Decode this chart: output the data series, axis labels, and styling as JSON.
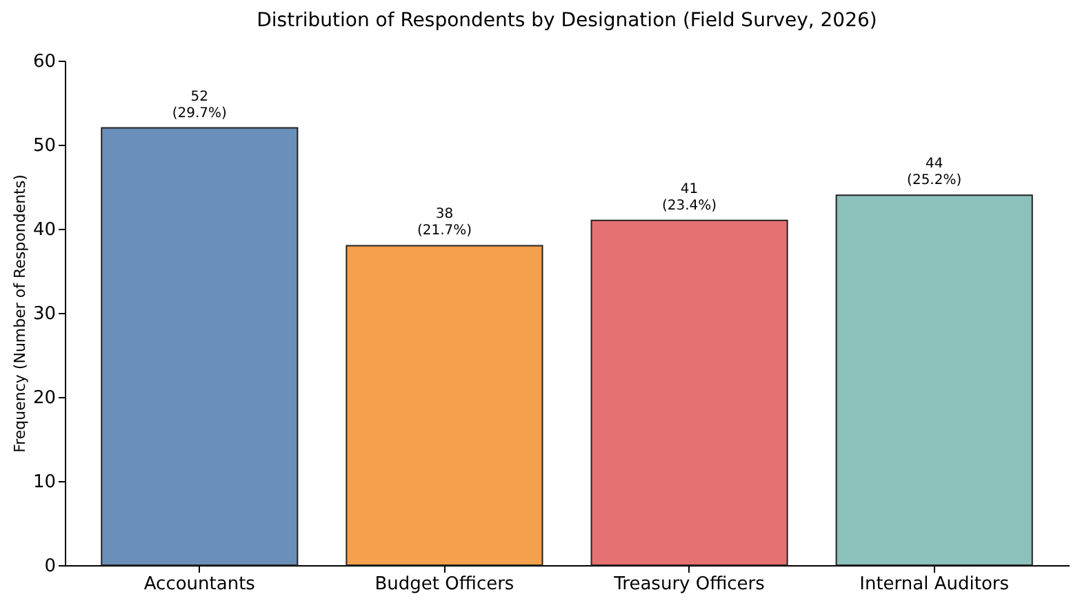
{
  "chart_data": {
    "type": "bar",
    "title": "Distribution of Respondents by Designation (Field Survey, 2026)",
    "ylabel": "Frequency (Number of Respondents)",
    "categories": [
      "Accountants",
      "Budget Officers",
      "Treasury Officers",
      "Internal Auditors"
    ],
    "values": [
      52,
      38,
      41,
      44
    ],
    "colors": [
      "#6a8fb8",
      "#f4a04c",
      "#e57172",
      "#8cc1bc"
    ],
    "value_labels": [
      "52\n(29.7%)",
      "38\n(21.7%)",
      "41\n(23.4%)",
      "44\n(25.2%)"
    ],
    "ylim": [
      0,
      60
    ],
    "yticks": [
      0,
      10,
      20,
      30,
      40,
      50,
      60
    ]
  }
}
